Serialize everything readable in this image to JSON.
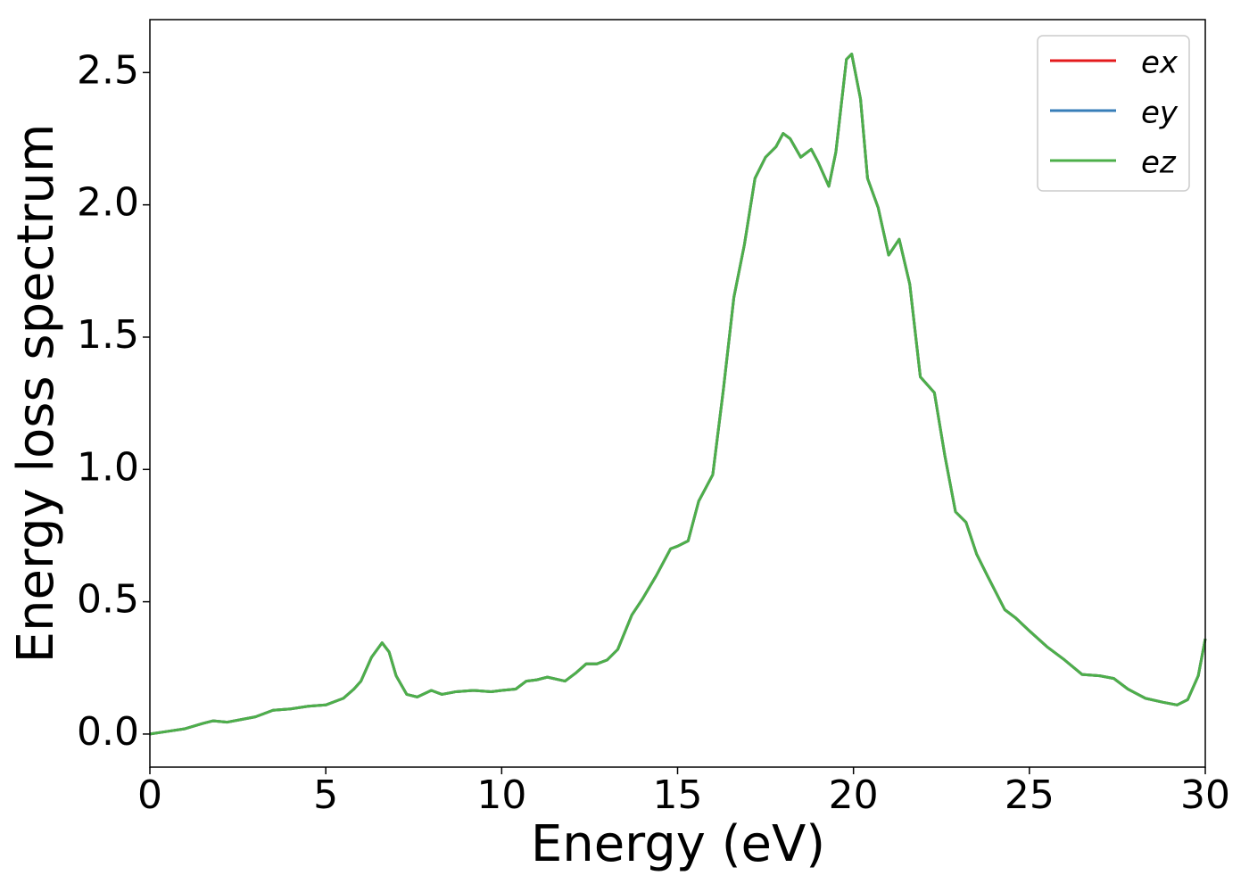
{
  "chart_data": {
    "type": "line",
    "xlabel": "Energy (eV)",
    "ylabel": "Energy loss spectrum",
    "x": [
      0,
      0.5,
      1.0,
      1.5,
      1.8,
      2.2,
      2.6,
      3.0,
      3.5,
      4.0,
      4.5,
      5.0,
      5.5,
      5.8,
      6.0,
      6.3,
      6.6,
      6.8,
      7.0,
      7.3,
      7.6,
      8.0,
      8.3,
      8.7,
      9.2,
      9.7,
      10.0,
      10.4,
      10.7,
      11.0,
      11.3,
      11.8,
      12.1,
      12.4,
      12.7,
      13.0,
      13.3,
      13.7,
      14.0,
      14.4,
      14.8,
      15.0,
      15.3,
      15.6,
      15.8,
      16.0,
      16.3,
      16.6,
      16.9,
      17.2,
      17.5,
      17.8,
      18.0,
      18.2,
      18.5,
      18.8,
      19.0,
      19.3,
      19.5,
      19.8,
      19.95,
      20.2,
      20.4,
      20.7,
      21.0,
      21.3,
      21.6,
      21.9,
      22.3,
      22.6,
      22.9,
      23.2,
      23.5,
      23.8,
      24.3,
      24.6,
      25.0,
      25.5,
      26.0,
      26.5,
      27.0,
      27.4,
      27.8,
      28.3,
      28.8,
      29.2,
      29.5,
      29.8,
      30.0
    ],
    "series": [
      {
        "name": "ex",
        "color": "#e41a1c",
        "values": [
          0,
          0.01,
          0.02,
          0.04,
          0.05,
          0.045,
          0.055,
          0.065,
          0.09,
          0.095,
          0.105,
          0.11,
          0.135,
          0.17,
          0.2,
          0.29,
          0.345,
          0.31,
          0.22,
          0.15,
          0.14,
          0.165,
          0.15,
          0.16,
          0.165,
          0.16,
          0.165,
          0.17,
          0.2,
          0.205,
          0.215,
          0.2,
          0.23,
          0.265,
          0.265,
          0.28,
          0.32,
          0.45,
          0.51,
          0.6,
          0.7,
          0.71,
          0.73,
          0.88,
          0.93,
          0.98,
          1.3,
          1.65,
          1.85,
          2.1,
          2.18,
          2.22,
          2.27,
          2.25,
          2.18,
          2.21,
          2.16,
          2.07,
          2.2,
          2.55,
          2.57,
          2.4,
          2.1,
          1.99,
          1.81,
          1.87,
          1.7,
          1.35,
          1.29,
          1.05,
          0.84,
          0.8,
          0.68,
          0.6,
          0.47,
          0.44,
          0.39,
          0.33,
          0.28,
          0.225,
          0.22,
          0.21,
          0.17,
          0.135,
          0.12,
          0.11,
          0.13,
          0.22,
          0.36
        ]
      },
      {
        "name": "ey",
        "color": "#377eb8",
        "values": [
          0,
          0.01,
          0.02,
          0.04,
          0.05,
          0.045,
          0.055,
          0.065,
          0.09,
          0.095,
          0.105,
          0.11,
          0.135,
          0.17,
          0.2,
          0.29,
          0.345,
          0.31,
          0.22,
          0.15,
          0.14,
          0.165,
          0.15,
          0.16,
          0.165,
          0.16,
          0.165,
          0.17,
          0.2,
          0.205,
          0.215,
          0.2,
          0.23,
          0.265,
          0.265,
          0.28,
          0.32,
          0.45,
          0.51,
          0.6,
          0.7,
          0.71,
          0.73,
          0.88,
          0.93,
          0.98,
          1.3,
          1.65,
          1.85,
          2.1,
          2.18,
          2.22,
          2.27,
          2.25,
          2.18,
          2.21,
          2.16,
          2.07,
          2.2,
          2.55,
          2.57,
          2.4,
          2.1,
          1.99,
          1.81,
          1.87,
          1.7,
          1.35,
          1.29,
          1.05,
          0.84,
          0.8,
          0.68,
          0.6,
          0.47,
          0.44,
          0.39,
          0.33,
          0.28,
          0.225,
          0.22,
          0.21,
          0.17,
          0.135,
          0.12,
          0.11,
          0.13,
          0.22,
          0.36
        ]
      },
      {
        "name": "ez",
        "color": "#4daf4a",
        "values": [
          0,
          0.01,
          0.02,
          0.04,
          0.05,
          0.045,
          0.055,
          0.065,
          0.09,
          0.095,
          0.105,
          0.11,
          0.135,
          0.17,
          0.2,
          0.29,
          0.345,
          0.31,
          0.22,
          0.15,
          0.14,
          0.165,
          0.15,
          0.16,
          0.165,
          0.16,
          0.165,
          0.17,
          0.2,
          0.205,
          0.215,
          0.2,
          0.23,
          0.265,
          0.265,
          0.28,
          0.32,
          0.45,
          0.51,
          0.6,
          0.7,
          0.71,
          0.73,
          0.88,
          0.93,
          0.98,
          1.3,
          1.65,
          1.85,
          2.1,
          2.18,
          2.22,
          2.27,
          2.25,
          2.18,
          2.21,
          2.16,
          2.07,
          2.2,
          2.55,
          2.57,
          2.4,
          2.1,
          1.99,
          1.81,
          1.87,
          1.7,
          1.35,
          1.29,
          1.05,
          0.84,
          0.8,
          0.68,
          0.6,
          0.47,
          0.44,
          0.39,
          0.33,
          0.28,
          0.225,
          0.22,
          0.21,
          0.17,
          0.135,
          0.12,
          0.11,
          0.13,
          0.22,
          0.36
        ]
      }
    ],
    "xlim": [
      0,
      30
    ],
    "xticks": [
      0,
      5,
      10,
      15,
      20,
      25,
      30
    ],
    "ylim": [
      -0.125,
      2.7
    ],
    "yticks": [
      {
        "value": 0,
        "label": "0.0"
      },
      0.5,
      {
        "value": 1,
        "label": "1.0"
      },
      1.5,
      {
        "value": 2,
        "label": "2.0"
      },
      2.5
    ],
    "legend": "upper right"
  }
}
